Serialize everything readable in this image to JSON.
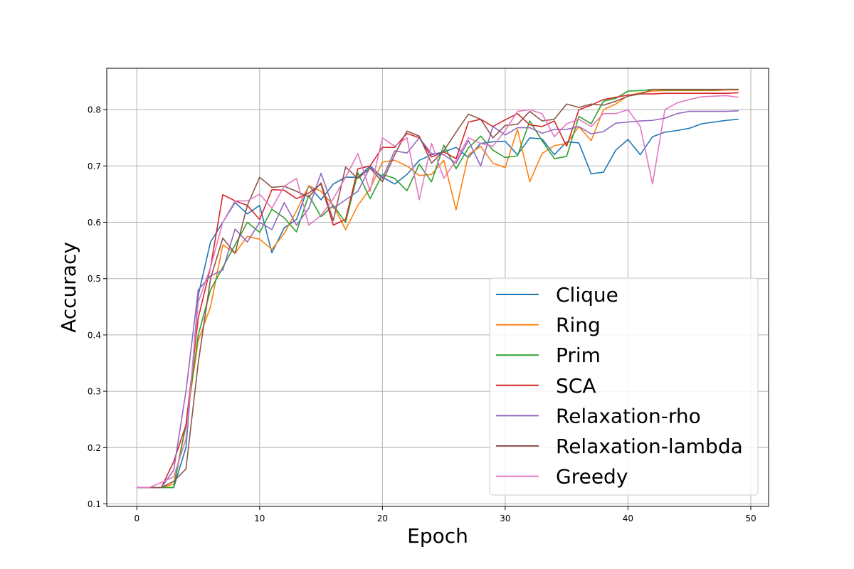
{
  "chart_data": {
    "type": "line",
    "title": "",
    "xlabel": "Epoch",
    "ylabel": "Accuracy",
    "xlim": [
      -2.45,
      51.45
    ],
    "ylim": [
      0.0955,
      0.8735
    ],
    "xticks": [
      0,
      10,
      20,
      30,
      40,
      50
    ],
    "yticks": [
      0.1,
      0.2,
      0.3,
      0.4,
      0.5,
      0.6,
      0.7,
      0.8
    ],
    "grid": true,
    "legend_position": "lower right",
    "x": [
      0,
      1,
      2,
      3,
      4,
      5,
      6,
      7,
      8,
      9,
      10,
      11,
      12,
      13,
      14,
      15,
      16,
      17,
      18,
      19,
      20,
      21,
      22,
      23,
      24,
      25,
      26,
      27,
      28,
      29,
      30,
      31,
      32,
      33,
      34,
      35,
      36,
      37,
      38,
      39,
      40,
      41,
      42,
      43,
      44,
      45,
      46,
      47,
      48,
      49
    ],
    "series": [
      {
        "name": "Clique",
        "color": "#1f77b4",
        "values": [
          0.129,
          0.129,
          0.129,
          0.129,
          0.2,
          0.47,
          0.565,
          0.6,
          0.635,
          0.615,
          0.63,
          0.546,
          0.59,
          0.605,
          0.665,
          0.64,
          0.668,
          0.68,
          0.68,
          0.7,
          0.68,
          0.668,
          0.685,
          0.71,
          0.72,
          0.725,
          0.733,
          0.715,
          0.74,
          0.743,
          0.744,
          0.72,
          0.75,
          0.748,
          0.72,
          0.743,
          0.741,
          0.686,
          0.689,
          0.728,
          0.747,
          0.72,
          0.752,
          0.76,
          0.763,
          0.767,
          0.775,
          0.778,
          0.781,
          0.783
        ]
      },
      {
        "name": "Ring",
        "color": "#ff7f0e",
        "values": [
          0.129,
          0.129,
          0.129,
          0.135,
          0.24,
          0.39,
          0.45,
          0.56,
          0.545,
          0.575,
          0.57,
          0.552,
          0.58,
          0.62,
          0.665,
          0.655,
          0.63,
          0.587,
          0.63,
          0.66,
          0.707,
          0.71,
          0.7,
          0.683,
          0.685,
          0.71,
          0.622,
          0.72,
          0.735,
          0.705,
          0.697,
          0.765,
          0.672,
          0.722,
          0.736,
          0.74,
          0.77,
          0.745,
          0.8,
          0.81,
          0.825,
          0.83,
          0.833,
          0.834,
          0.834,
          0.834,
          0.834,
          0.834,
          0.835,
          0.835
        ]
      },
      {
        "name": "Prim",
        "color": "#2ca02c",
        "values": [
          0.129,
          0.129,
          0.129,
          0.129,
          0.24,
          0.4,
          0.48,
          0.52,
          0.56,
          0.6,
          0.582,
          0.623,
          0.608,
          0.583,
          0.648,
          0.61,
          0.63,
          0.6,
          0.688,
          0.642,
          0.685,
          0.678,
          0.656,
          0.703,
          0.672,
          0.737,
          0.695,
          0.732,
          0.753,
          0.728,
          0.715,
          0.718,
          0.78,
          0.745,
          0.713,
          0.717,
          0.788,
          0.775,
          0.815,
          0.82,
          0.833,
          0.834,
          0.836,
          0.835,
          0.835,
          0.835,
          0.835,
          0.835,
          0.836,
          0.836
        ]
      },
      {
        "name": "SCA",
        "color": "#d62728",
        "values": [
          0.129,
          0.129,
          0.129,
          0.175,
          0.24,
          0.43,
          0.52,
          0.649,
          0.638,
          0.63,
          0.605,
          0.658,
          0.657,
          0.642,
          0.652,
          0.668,
          0.595,
          0.605,
          0.695,
          0.7,
          0.733,
          0.733,
          0.758,
          0.75,
          0.716,
          0.725,
          0.713,
          0.778,
          0.783,
          0.77,
          0.782,
          0.793,
          0.773,
          0.77,
          0.78,
          0.735,
          0.8,
          0.808,
          0.818,
          0.822,
          0.826,
          0.828,
          0.828,
          0.829,
          0.829,
          0.829,
          0.829,
          0.829,
          0.829,
          0.83
        ]
      },
      {
        "name": "Relaxation-rho",
        "color": "#9467bd",
        "values": [
          0.129,
          0.129,
          0.129,
          0.16,
          0.3,
          0.48,
          0.505,
          0.515,
          0.588,
          0.565,
          0.6,
          0.587,
          0.635,
          0.595,
          0.625,
          0.687,
          0.625,
          0.64,
          0.655,
          0.698,
          0.678,
          0.727,
          0.723,
          0.75,
          0.722,
          0.72,
          0.705,
          0.745,
          0.7,
          0.77,
          0.755,
          0.768,
          0.768,
          0.758,
          0.765,
          0.765,
          0.77,
          0.757,
          0.761,
          0.776,
          0.778,
          0.78,
          0.781,
          0.785,
          0.793,
          0.797,
          0.797,
          0.797,
          0.797,
          0.798
        ]
      },
      {
        "name": "Relaxation-lambda",
        "color": "#8c564b",
        "values": [
          0.129,
          0.129,
          0.129,
          0.14,
          0.162,
          0.35,
          0.5,
          0.572,
          0.545,
          0.63,
          0.68,
          0.662,
          0.664,
          0.655,
          0.645,
          0.67,
          0.603,
          0.698,
          0.678,
          0.696,
          0.672,
          0.72,
          0.762,
          0.753,
          0.705,
          0.727,
          0.76,
          0.792,
          0.783,
          0.75,
          0.772,
          0.774,
          0.797,
          0.78,
          0.783,
          0.81,
          0.804,
          0.81,
          0.808,
          0.815,
          0.824,
          0.828,
          0.836,
          0.836,
          0.836,
          0.836,
          0.836,
          0.836,
          0.836,
          0.836
        ]
      },
      {
        "name": "Greedy",
        "color": "#e377c2",
        "values": [
          0.129,
          0.129,
          0.138,
          0.148,
          0.215,
          0.458,
          0.52,
          0.6,
          0.638,
          0.638,
          0.65,
          0.625,
          0.664,
          0.678,
          0.595,
          0.612,
          0.642,
          0.68,
          0.722,
          0.655,
          0.75,
          0.735,
          0.75,
          0.64,
          0.74,
          0.678,
          0.71,
          0.75,
          0.74,
          0.735,
          0.763,
          0.797,
          0.8,
          0.793,
          0.752,
          0.775,
          0.783,
          0.77,
          0.793,
          0.793,
          0.8,
          0.77,
          0.668,
          0.8,
          0.812,
          0.818,
          0.823,
          0.824,
          0.825,
          0.822
        ]
      }
    ]
  }
}
